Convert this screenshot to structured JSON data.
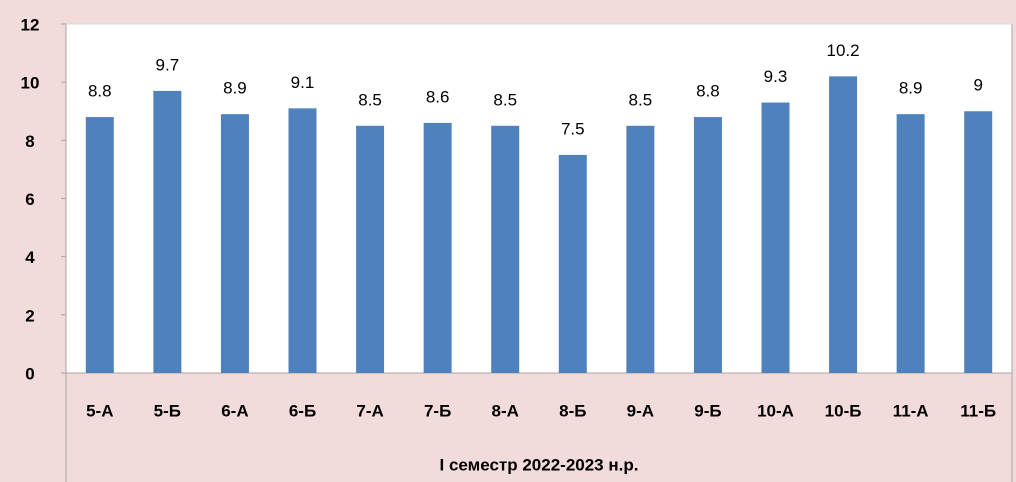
{
  "chart_data": {
    "type": "bar",
    "x_label": "І семестр 2022-2023 н.р.",
    "categories": [
      "5-А",
      "5-Б",
      "6-А",
      "6-Б",
      "7-А",
      "7-Б",
      "8-А",
      "8-Б",
      "9-А",
      "9-Б",
      "10-А",
      "10-Б",
      "11-А",
      "11-Б"
    ],
    "values": [
      8.8,
      9.7,
      8.9,
      9.1,
      8.5,
      8.6,
      8.5,
      7.5,
      8.5,
      8.8,
      9.3,
      10.2,
      8.9,
      9
    ],
    "color": "#4f81bd",
    "ylim": [
      0,
      12
    ],
    "yticks": [
      0,
      2,
      4,
      6,
      8,
      10,
      12
    ],
    "grid": false
  }
}
